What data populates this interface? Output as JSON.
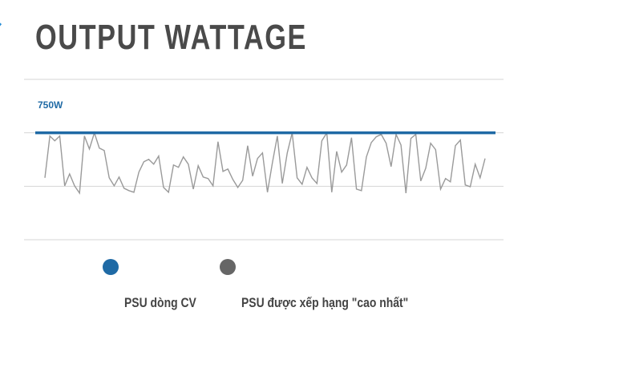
{
  "chart_data": {
    "type": "line",
    "title": "OUTPUT WATTAGE",
    "ylim": [
      0,
      1125
    ],
    "grid": true,
    "annotations": [
      "750W"
    ],
    "colors": {
      "cv": "#1f6aa5",
      "rated": "#9a9a9a",
      "rated_dot": "#666666"
    },
    "series": [
      {
        "name": "PSU dòng CV",
        "constant": 750
      },
      {
        "name": "PSU được xếp hạng \"cao nhất\"",
        "values": [
          434,
          728,
          694,
          728,
          378,
          462,
          378,
          327,
          728,
          637,
          750,
          643,
          626,
          434,
          378,
          440,
          361,
          344,
          333,
          474,
          547,
          564,
          530,
          587,
          367,
          333,
          524,
          508,
          581,
          530,
          355,
          519,
          440,
          429,
          378,
          688,
          479,
          496,
          423,
          367,
          417,
          660,
          446,
          570,
          609,
          333,
          541,
          728,
          395,
          609,
          750,
          434,
          389,
          508,
          434,
          395,
          694,
          750,
          333,
          620,
          474,
          524,
          716,
          355,
          344,
          581,
          682,
          722,
          739,
          677,
          513,
          739,
          665,
          327,
          711,
          739,
          412,
          502,
          677,
          632,
          355,
          429,
          406,
          660,
          699,
          384,
          372,
          530,
          434,
          570
        ]
      }
    ],
    "legend_placement": "bottom"
  }
}
